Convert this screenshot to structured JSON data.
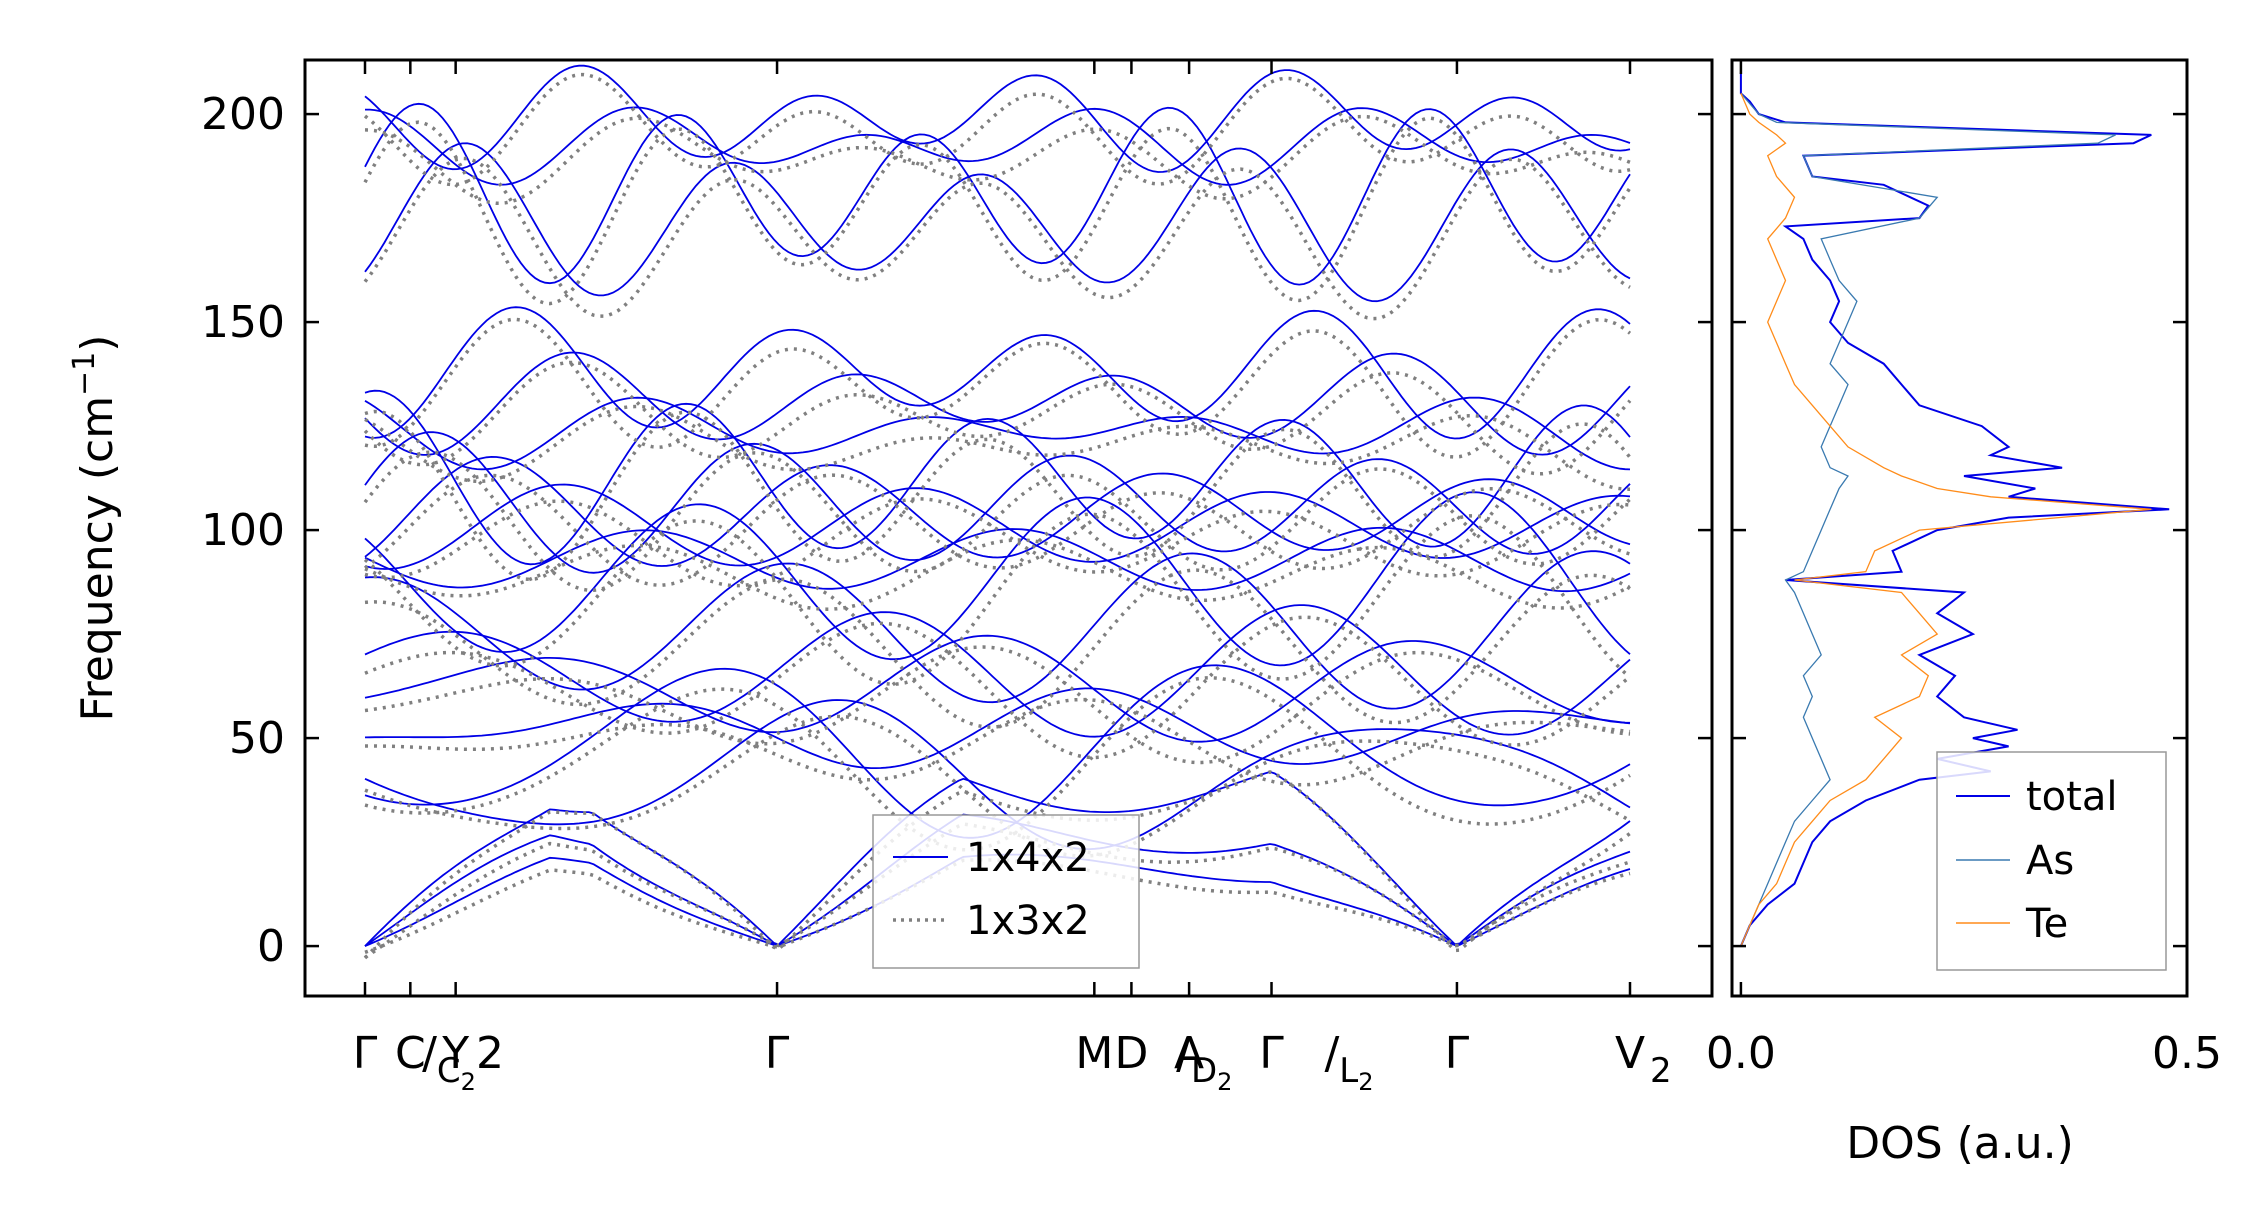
{
  "chart_data": [
    {
      "type": "line",
      "title": "",
      "ylabel": "Frequency (cm",
      "ylabel_sup": "−1",
      "ylabel_end": ")",
      "ylim": [
        -12,
        213
      ],
      "yticks": [
        0,
        50,
        100,
        150,
        200
      ],
      "xlim": [
        0,
        3.1
      ],
      "xticks": [
        {
          "pos": 0.0,
          "label": "Γ"
        },
        {
          "pos": 0.11,
          "label": "C"
        },
        {
          "pos": 0.22,
          "label": "Y"
        },
        {
          "pos": 1.0,
          "label": "Γ"
        },
        {
          "pos": 1.77,
          "label": "M"
        },
        {
          "pos": 1.86,
          "label": "D"
        },
        {
          "pos": 2.0,
          "label": "A"
        },
        {
          "pos": 2.2,
          "label": "Γ"
        },
        {
          "pos": 2.65,
          "label": "Γ"
        },
        {
          "pos": 3.07,
          "label": "V"
        }
      ],
      "xtick_composite_labels": [
        {
          "pos": 0.09,
          "label": "/",
          "sub": "C",
          "subsub": "2",
          "tail": "2"
        },
        {
          "pos": 1.92,
          "label": "/",
          "sub": "D",
          "subsub": "2"
        },
        {
          "pos": 2.28,
          "label": "/",
          "sub": "L",
          "subsub": "2"
        },
        {
          "pos": 3.07,
          "sub": "2"
        }
      ],
      "segment_breaks": [
        2.2
      ],
      "legend": {
        "position": "lower-center",
        "entries": [
          "1x4x2",
          "1x3x2"
        ]
      },
      "series": [
        {
          "name": "1x4x2",
          "color": "#0000e6",
          "style": "solid",
          "branch_levels_at_gamma": [
            0,
            0,
            0,
            41,
            48,
            52,
            62,
            66,
            76,
            88,
            93,
            101,
            104,
            106,
            112,
            124,
            131,
            138,
            174,
            181,
            193,
            199
          ]
        },
        {
          "name": "1x3x2",
          "color": "#808080",
          "style": "dotted",
          "branch_levels_at_gamma": [
            0,
            0,
            0,
            40,
            46,
            50,
            60,
            64,
            73,
            85,
            91,
            99,
            102,
            104,
            110,
            122,
            129,
            136,
            172,
            179,
            191,
            197
          ]
        }
      ]
    },
    {
      "type": "line",
      "title": "",
      "xlabel": "DOS (a.u.)",
      "xlim": [
        -0.01,
        0.5
      ],
      "xticks": [
        0.0,
        0.5
      ],
      "xticklabels": [
        "0.0",
        "0.5"
      ],
      "ylim": [
        -12,
        213
      ],
      "legend": {
        "position": "lower-right",
        "entries": [
          "total",
          "As",
          "Te"
        ]
      },
      "series": [
        {
          "name": "total",
          "color": "#0000e6",
          "freq": [
            0,
            5,
            10,
            15,
            20,
            25,
            30,
            35,
            40,
            42,
            45,
            48,
            50,
            52,
            55,
            60,
            65,
            70,
            75,
            80,
            85,
            88,
            90,
            95,
            100,
            103,
            105,
            108,
            110,
            113,
            115,
            118,
            120,
            125,
            130,
            135,
            140,
            145,
            150,
            155,
            160,
            165,
            170,
            173,
            175,
            178,
            180,
            183,
            185,
            190,
            193,
            195,
            198,
            200,
            203,
            205,
            210
          ],
          "dos": [
            0,
            0.01,
            0.03,
            0.06,
            0.07,
            0.08,
            0.1,
            0.14,
            0.2,
            0.28,
            0.22,
            0.3,
            0.26,
            0.31,
            0.25,
            0.22,
            0.24,
            0.2,
            0.26,
            0.22,
            0.25,
            0.05,
            0.18,
            0.17,
            0.22,
            0.3,
            0.48,
            0.3,
            0.33,
            0.25,
            0.36,
            0.28,
            0.3,
            0.27,
            0.2,
            0.18,
            0.16,
            0.12,
            0.1,
            0.11,
            0.1,
            0.08,
            0.07,
            0.05,
            0.2,
            0.21,
            0.19,
            0.16,
            0.08,
            0.07,
            0.44,
            0.46,
            0.05,
            0.02,
            0.01,
            0,
            0
          ]
        },
        {
          "name": "As",
          "color": "#3a7ab0",
          "freq": [
            0,
            5,
            10,
            15,
            20,
            25,
            30,
            35,
            40,
            45,
            50,
            55,
            60,
            65,
            70,
            75,
            80,
            85,
            88,
            90,
            95,
            100,
            105,
            110,
            113,
            115,
            120,
            125,
            130,
            135,
            140,
            145,
            150,
            155,
            160,
            165,
            170,
            175,
            180,
            185,
            190,
            193,
            195,
            198,
            200,
            205
          ],
          "dos": [
            0,
            0.01,
            0.02,
            0.03,
            0.04,
            0.05,
            0.06,
            0.08,
            0.1,
            0.09,
            0.08,
            0.07,
            0.08,
            0.07,
            0.09,
            0.08,
            0.07,
            0.06,
            0.05,
            0.07,
            0.08,
            0.09,
            0.1,
            0.11,
            0.12,
            0.1,
            0.09,
            0.1,
            0.11,
            0.12,
            0.1,
            0.11,
            0.12,
            0.13,
            0.11,
            0.1,
            0.09,
            0.2,
            0.22,
            0.08,
            0.07,
            0.4,
            0.42,
            0.04,
            0.02,
            0
          ]
        },
        {
          "name": "Te",
          "color": "#ff8c1a",
          "freq": [
            0,
            5,
            10,
            15,
            20,
            25,
            30,
            35,
            40,
            45,
            50,
            55,
            60,
            65,
            70,
            75,
            80,
            85,
            88,
            90,
            95,
            100,
            105,
            108,
            110,
            113,
            115,
            120,
            125,
            130,
            135,
            140,
            145,
            150,
            155,
            160,
            165,
            170,
            175,
            180,
            185,
            190,
            193,
            195,
            198,
            200,
            205
          ],
          "dos": [
            0,
            0.01,
            0.02,
            0.04,
            0.05,
            0.06,
            0.08,
            0.1,
            0.14,
            0.16,
            0.18,
            0.15,
            0.2,
            0.21,
            0.18,
            0.22,
            0.2,
            0.18,
            0.06,
            0.14,
            0.15,
            0.2,
            0.46,
            0.28,
            0.22,
            0.18,
            0.16,
            0.12,
            0.1,
            0.08,
            0.06,
            0.05,
            0.04,
            0.03,
            0.04,
            0.05,
            0.04,
            0.03,
            0.05,
            0.06,
            0.04,
            0.03,
            0.05,
            0.04,
            0.02,
            0.01,
            0
          ]
        }
      ]
    }
  ]
}
